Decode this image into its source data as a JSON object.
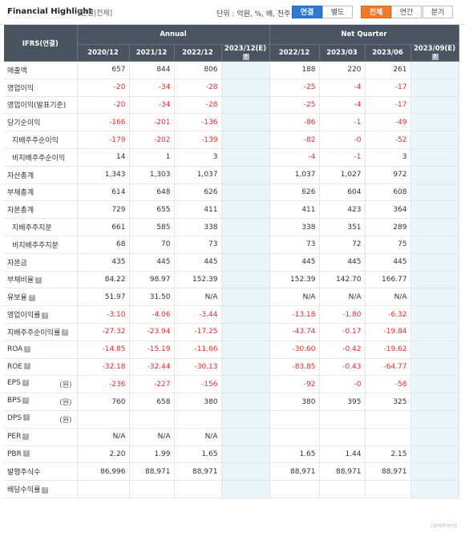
{
  "header": {
    "title": "Financial Highlight",
    "scope": "[연결|전체]",
    "unit_text": "단위 : 억원, %, 배, 천주",
    "buttons": {
      "consolidated": "연결",
      "separate": "별도",
      "all": "전체",
      "annual": "연간",
      "quarter": "분기"
    }
  },
  "table": {
    "corner": "IFRS(연결)",
    "group_annual": "Annual",
    "group_quarter": "Net Quarter",
    "periods": [
      "2020/12",
      "2021/12",
      "2022/12",
      "2023/12(E)",
      "2022/12",
      "2023/03",
      "2023/06",
      "2023/09(E)"
    ],
    "won_label": "(원)",
    "help_icon": "question-icon",
    "rows": [
      {
        "label": "매출액",
        "sub": false,
        "help": false,
        "won": false,
        "values": [
          "657",
          "844",
          "806",
          "",
          "188",
          "220",
          "261",
          ""
        ]
      },
      {
        "label": "영업이익",
        "sub": false,
        "help": false,
        "won": false,
        "values": [
          "-20",
          "-34",
          "-28",
          "",
          "-25",
          "-4",
          "-17",
          ""
        ]
      },
      {
        "label": "영업이익(발표기준)",
        "sub": false,
        "help": false,
        "won": false,
        "values": [
          "-20",
          "-34",
          "-28",
          "",
          "-25",
          "-4",
          "-17",
          ""
        ]
      },
      {
        "label": "당기순이익",
        "sub": false,
        "help": false,
        "won": false,
        "values": [
          "-166",
          "-201",
          "-136",
          "",
          "-86",
          "-1",
          "-49",
          ""
        ]
      },
      {
        "label": "지배주주순이익",
        "sub": true,
        "help": false,
        "won": false,
        "values": [
          "-179",
          "-202",
          "-139",
          "",
          "-82",
          "-0",
          "-52",
          ""
        ]
      },
      {
        "label": "비지배주주순이익",
        "sub": true,
        "help": false,
        "won": false,
        "values": [
          "14",
          "1",
          "3",
          "",
          "-4",
          "-1",
          "3",
          ""
        ]
      },
      {
        "label": "자산총계",
        "sub": false,
        "help": false,
        "won": false,
        "values": [
          "1,343",
          "1,303",
          "1,037",
          "",
          "1,037",
          "1,027",
          "972",
          ""
        ]
      },
      {
        "label": "부채총계",
        "sub": false,
        "help": false,
        "won": false,
        "values": [
          "614",
          "648",
          "626",
          "",
          "626",
          "604",
          "608",
          ""
        ]
      },
      {
        "label": "자본총계",
        "sub": false,
        "help": false,
        "won": false,
        "values": [
          "729",
          "655",
          "411",
          "",
          "411",
          "423",
          "364",
          ""
        ]
      },
      {
        "label": "지배주주지분",
        "sub": true,
        "help": false,
        "won": false,
        "values": [
          "661",
          "585",
          "338",
          "",
          "338",
          "351",
          "289",
          ""
        ]
      },
      {
        "label": "비지배주주지분",
        "sub": true,
        "help": false,
        "won": false,
        "values": [
          "68",
          "70",
          "73",
          "",
          "73",
          "72",
          "75",
          ""
        ]
      },
      {
        "label": "자본금",
        "sub": false,
        "help": false,
        "won": false,
        "values": [
          "435",
          "445",
          "445",
          "",
          "445",
          "445",
          "445",
          ""
        ]
      },
      {
        "label": "부채비율",
        "sub": false,
        "help": true,
        "won": false,
        "values": [
          "84.22",
          "98.97",
          "152.39",
          "",
          "152.39",
          "142.70",
          "166.77",
          ""
        ]
      },
      {
        "label": "유보율",
        "sub": false,
        "help": true,
        "won": false,
        "values": [
          "51.97",
          "31.50",
          "N/A",
          "",
          "N/A",
          "N/A",
          "N/A",
          ""
        ]
      },
      {
        "label": "영업이익률",
        "sub": false,
        "help": true,
        "won": false,
        "values": [
          "-3.10",
          "-4.06",
          "-3.44",
          "",
          "-13.18",
          "-1.80",
          "-6.32",
          ""
        ]
      },
      {
        "label": "지배주주순이익률",
        "sub": false,
        "help": true,
        "won": false,
        "values": [
          "-27.32",
          "-23.94",
          "-17.25",
          "",
          "-43.74",
          "-0.17",
          "-19.84",
          ""
        ]
      },
      {
        "label": "ROA",
        "sub": false,
        "help": true,
        "won": false,
        "values": [
          "-14.85",
          "-15.19",
          "-11.66",
          "",
          "-30.60",
          "-0.42",
          "-19.62",
          ""
        ]
      },
      {
        "label": "ROE",
        "sub": false,
        "help": true,
        "won": false,
        "values": [
          "-32.18",
          "-32.44",
          "-30.13",
          "",
          "-83.85",
          "-0.43",
          "-64.77",
          ""
        ]
      },
      {
        "label": "EPS",
        "sub": false,
        "help": true,
        "won": true,
        "values": [
          "-236",
          "-227",
          "-156",
          "",
          "-92",
          "-0",
          "-58",
          ""
        ]
      },
      {
        "label": "BPS",
        "sub": false,
        "help": true,
        "won": true,
        "values": [
          "760",
          "658",
          "380",
          "",
          "380",
          "395",
          "325",
          ""
        ]
      },
      {
        "label": "DPS",
        "sub": false,
        "help": true,
        "won": true,
        "values": [
          "",
          "",
          "",
          "",
          "",
          "",
          "",
          ""
        ]
      },
      {
        "label": "PER",
        "sub": false,
        "help": true,
        "won": false,
        "values": [
          "N/A",
          "N/A",
          "N/A",
          "",
          "",
          "",
          "",
          ""
        ]
      },
      {
        "label": "PBR",
        "sub": false,
        "help": true,
        "won": false,
        "values": [
          "2.20",
          "1.99",
          "1.65",
          "",
          "1.65",
          "1.44",
          "2.15",
          ""
        ]
      },
      {
        "label": "발행주식수",
        "sub": false,
        "help": false,
        "won": false,
        "values": [
          "86,996",
          "88,971",
          "88,971",
          "",
          "88,971",
          "88,971",
          "88,971",
          ""
        ]
      },
      {
        "label": "배당수익률",
        "sub": false,
        "help": true,
        "won": false,
        "values": [
          "",
          "",
          "",
          "",
          "",
          "",
          "",
          ""
        ]
      }
    ]
  },
  "colors": {
    "header_bg": "#4a5460",
    "negative": "#e02e2e",
    "estimate_bg": "#eaf4fb",
    "accent_blue": "#2f79d3",
    "accent_orange": "#ef7b2a"
  },
  "footer": "comment"
}
